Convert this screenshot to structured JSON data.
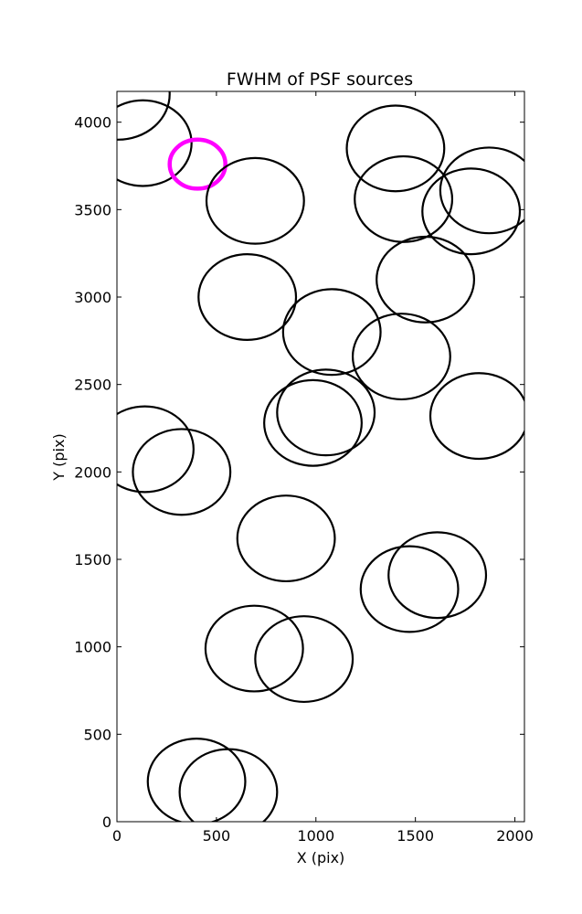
{
  "chart_data": {
    "type": "scatter",
    "title": "FWHM of PSF sources",
    "xlabel": "X (pix)",
    "ylabel": "Y (pix)",
    "xlim": [
      0,
      2048
    ],
    "ylim": [
      0,
      4176
    ],
    "xticks": [
      0,
      500,
      1000,
      1500,
      2000
    ],
    "yticks": [
      0,
      500,
      1000,
      1500,
      2000,
      2500,
      3000,
      3500,
      4000
    ],
    "grid": false,
    "legend": "none",
    "marker": "circle",
    "default_color": "#000000",
    "highlight_color": "#ff00ff",
    "points": [
      {
        "x": 5,
        "y": 4160,
        "r": 260
      },
      {
        "x": 130,
        "y": 3880,
        "r": 245
      },
      {
        "x": 405,
        "y": 3760,
        "r": 140,
        "highlight": true
      },
      {
        "x": 695,
        "y": 3550,
        "r": 245
      },
      {
        "x": 1400,
        "y": 3850,
        "r": 245
      },
      {
        "x": 1440,
        "y": 3560,
        "r": 245
      },
      {
        "x": 1870,
        "y": 3610,
        "r": 245
      },
      {
        "x": 1780,
        "y": 3490,
        "r": 245
      },
      {
        "x": 1550,
        "y": 3100,
        "r": 245
      },
      {
        "x": 655,
        "y": 3000,
        "r": 245
      },
      {
        "x": 1080,
        "y": 2800,
        "r": 245
      },
      {
        "x": 1430,
        "y": 2660,
        "r": 245
      },
      {
        "x": 1050,
        "y": 2340,
        "r": 245
      },
      {
        "x": 985,
        "y": 2280,
        "r": 245
      },
      {
        "x": 1820,
        "y": 2320,
        "r": 245
      },
      {
        "x": 140,
        "y": 2130,
        "r": 245
      },
      {
        "x": 325,
        "y": 2000,
        "r": 245
      },
      {
        "x": 850,
        "y": 1620,
        "r": 245
      },
      {
        "x": 1470,
        "y": 1330,
        "r": 245
      },
      {
        "x": 1610,
        "y": 1410,
        "r": 245
      },
      {
        "x": 690,
        "y": 990,
        "r": 245
      },
      {
        "x": 940,
        "y": 930,
        "r": 245
      },
      {
        "x": 400,
        "y": 230,
        "r": 245
      },
      {
        "x": 560,
        "y": 170,
        "r": 245
      }
    ]
  }
}
